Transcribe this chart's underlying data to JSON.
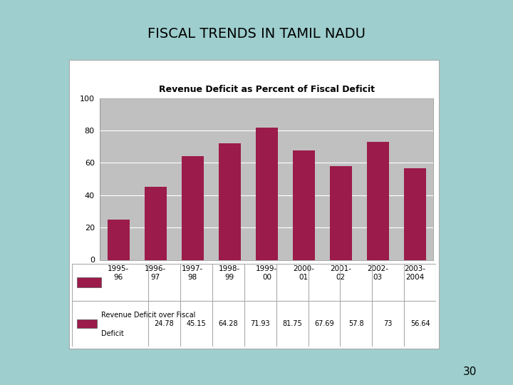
{
  "title": "FISCAL TRENDS IN TAMIL NADU",
  "chart_title": "Revenue Deficit as Percent of Fiscal Deficit",
  "categories": [
    "1995-\n96",
    "1996-\n97",
    "1997-\n98",
    "1998-\n99",
    "1999-\n00",
    "2000-\n01",
    "2001-\n02",
    "2002-\n03",
    "2003-\n2004"
  ],
  "values": [
    24.78,
    45.15,
    64.28,
    71.93,
    81.75,
    67.69,
    57.8,
    73,
    56.64
  ],
  "bar_color": "#9B1B4A",
  "plot_area_color": "#C0C0C0",
  "background_color": "#9ECECE",
  "panel_background": "#F0F0F0",
  "panel_border": "#AAAAAA",
  "ylim": [
    0,
    100
  ],
  "yticks": [
    0,
    20,
    40,
    60,
    80,
    100
  ],
  "legend_label": "Revenue Deficit over Fiscal Deficit",
  "page_number": "30",
  "table_values": [
    "24.78",
    "45.15",
    "64.28",
    "71.93",
    "81.75",
    "67.69",
    "57.8",
    "73",
    "56.64"
  ]
}
